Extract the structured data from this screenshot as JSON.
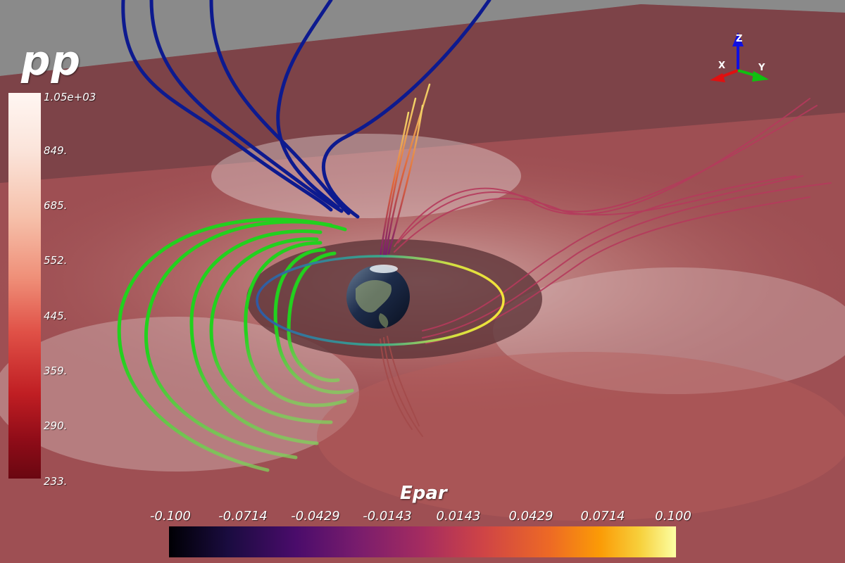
{
  "pp_legend": {
    "title": "pp",
    "ticks": [
      "1.05e+03",
      "849.",
      "685.",
      "552.",
      "445.",
      "359.",
      "290.",
      "233."
    ]
  },
  "epar_legend": {
    "title": "Epar",
    "ticks": [
      "-0.100",
      "-0.0714",
      "-0.0429",
      "-0.0143",
      "0.0143",
      "0.0429",
      "0.0714",
      "0.100"
    ]
  },
  "axes_triad": {
    "x": "X",
    "y": "Y",
    "z": "Z"
  },
  "colors": {
    "background_plane": "#b05a5a",
    "north_field_lines": "#0d1a8f",
    "closed_field_lines": "#22d11e",
    "axis_x": "#e01010",
    "axis_y": "#10c010",
    "axis_z": "#1010e0"
  }
}
